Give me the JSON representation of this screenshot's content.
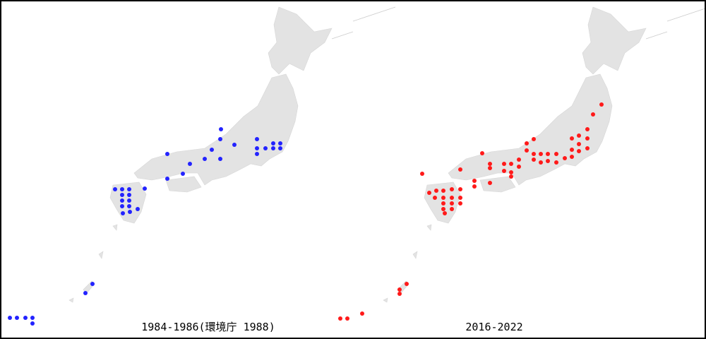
{
  "panels": [
    {
      "caption": "1984-1986(環境庁 1988)"
    },
    {
      "caption": "2016-2022"
    }
  ]
}
